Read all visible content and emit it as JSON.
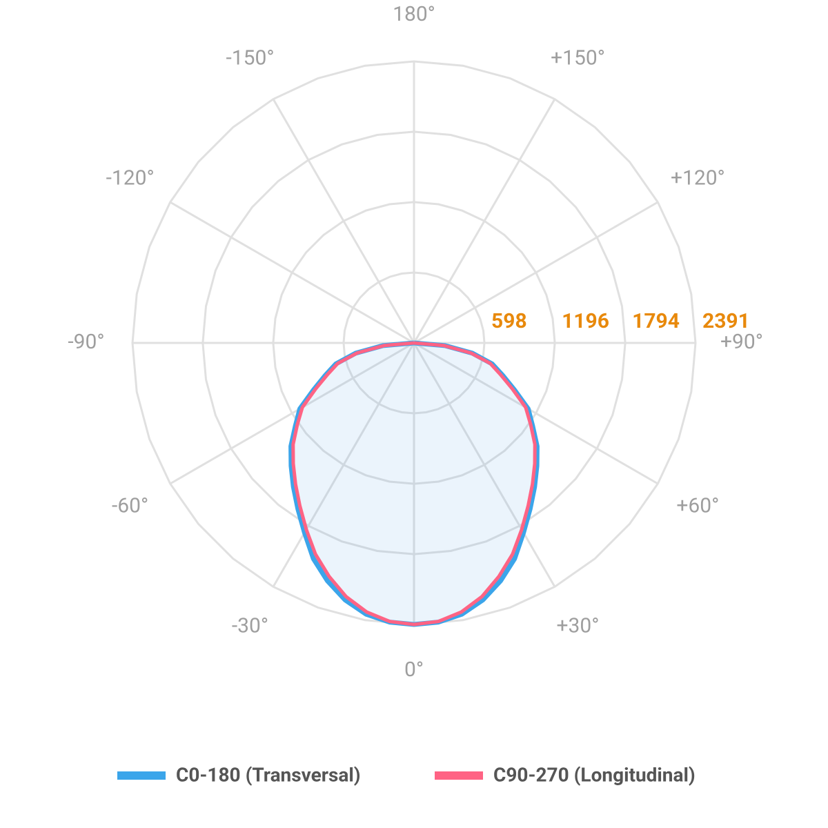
{
  "chart_data": {
    "type": "polar",
    "x": [
      -90,
      -85,
      -80,
      -75,
      -70,
      -65,
      -60,
      -55,
      -50,
      -45,
      -40,
      -35,
      -30,
      -25,
      -20,
      -15,
      -10,
      -5,
      0,
      5,
      10,
      15,
      20,
      25,
      30,
      35,
      40,
      45,
      50,
      55,
      60,
      65,
      70,
      75,
      80,
      85,
      90
    ],
    "series": [
      {
        "name": "C0-180 (Transversal)",
        "color": "#3ba5ea",
        "values": [
          0,
          264,
          504,
          686,
          800,
          940,
          1120,
          1230,
          1365,
          1476,
          1594,
          1720,
          1860,
          2022,
          2150,
          2260,
          2340,
          2380,
          2391,
          2380,
          2340,
          2260,
          2150,
          2022,
          1860,
          1720,
          1594,
          1476,
          1365,
          1230,
          1120,
          940,
          800,
          686,
          504,
          264,
          0
        ]
      },
      {
        "name": "C90-270 (Longitudinal)",
        "color": "#ff6384",
        "values": [
          0,
          255,
          490,
          670,
          780,
          920,
          1095,
          1210,
          1340,
          1450,
          1565,
          1690,
          1830,
          1980,
          2110,
          2230,
          2320,
          2375,
          2391,
          2375,
          2320,
          2230,
          2110,
          1980,
          1830,
          1690,
          1565,
          1450,
          1340,
          1210,
          1095,
          920,
          780,
          670,
          490,
          255,
          0
        ]
      }
    ],
    "rlim": [
      0,
      2391
    ],
    "rticks": [
      598,
      1196,
      1794,
      2391
    ],
    "xticks": [
      {
        "value": 180,
        "label": "180°"
      },
      {
        "value": 150,
        "label": "+150°"
      },
      {
        "value": 120,
        "label": "+120°"
      },
      {
        "value": 90,
        "label": "+90°"
      },
      {
        "value": 60,
        "label": "+60°"
      },
      {
        "value": 30,
        "label": "+30°"
      },
      {
        "value": 0,
        "label": "0°"
      },
      {
        "value": -30,
        "label": "-30°"
      },
      {
        "value": -60,
        "label": "-60°"
      },
      {
        "value": -90,
        "label": "-90°"
      },
      {
        "value": -120,
        "label": "-120°"
      },
      {
        "value": -150,
        "label": "-150°"
      }
    ],
    "grid": true
  }
}
